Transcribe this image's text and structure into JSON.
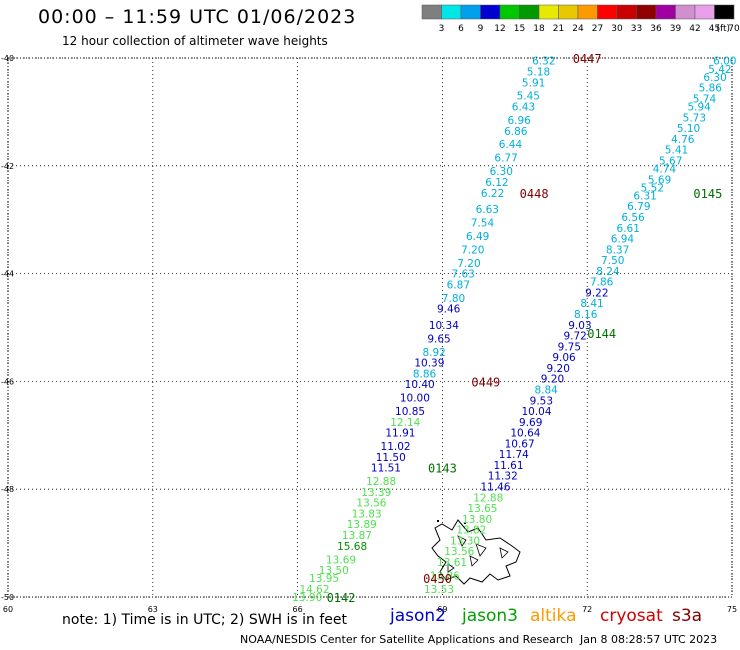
{
  "header": {
    "title": "00:00 – 11:59 UTC 01/06/2023",
    "subtitle": "12 hour collection of altimeter wave heights"
  },
  "scale": {
    "unit": "(ft)",
    "colors": [
      "#7f7f7f",
      "#00e5e5",
      "#00a0ee",
      "#0000d0",
      "#00c800",
      "#009900",
      "#e8e800",
      "#e8c800",
      "#ff9900",
      "#ff0000",
      "#c80000",
      "#900000",
      "#a000a0",
      "#d090d0",
      "#e8a0e8",
      "#000000"
    ],
    "labels": [
      "3",
      "6",
      "9",
      "12",
      "15",
      "18",
      "21",
      "24",
      "27",
      "30",
      "33",
      "36",
      "39",
      "42",
      "45",
      "70"
    ]
  },
  "axes": {
    "x_ticks": [
      "60",
      "63",
      "66",
      "69",
      "72",
      "75"
    ],
    "y_ticks": [
      "-40",
      "-42",
      "-44",
      "-46",
      "-48",
      "-50"
    ]
  },
  "tracks": [
    {
      "time": "0447",
      "color": "#800000",
      "x": 72,
      "y": -40
    },
    {
      "time": "0448",
      "color": "#800000",
      "x": 70.9,
      "y": -42.5
    },
    {
      "time": "0145",
      "color": "#007000",
      "x": 74.5,
      "y": -42.5
    },
    {
      "time": "0144",
      "color": "#007000",
      "x": 72.3,
      "y": -45.1
    },
    {
      "time": "0143",
      "color": "#007000",
      "x": 69,
      "y": -47.6
    },
    {
      "time": "0142",
      "color": "#007000",
      "x": 66.9,
      "y": -50
    },
    {
      "time": "0450",
      "color": "#800000",
      "x": 68.9,
      "y": -49.65
    },
    {
      "time": "0449",
      "color": "#800000",
      "x": 69.9,
      "y": -46
    }
  ],
  "swh_readings": [
    {
      "x": 71.1,
      "y": -40.05,
      "v": "6.32",
      "c": "#00b0d8"
    },
    {
      "x": 70.99,
      "y": -40.25,
      "v": "5.18",
      "c": "#00b0d8"
    },
    {
      "x": 70.89,
      "y": -40.45,
      "v": "5.91",
      "c": "#00b0d8"
    },
    {
      "x": 70.78,
      "y": -40.7,
      "v": "5.45",
      "c": "#00b0d8"
    },
    {
      "x": 70.68,
      "y": -40.9,
      "v": "6.43",
      "c": "#00b0d8"
    },
    {
      "x": 70.59,
      "y": -41.15,
      "v": "6.96",
      "c": "#00b0d8"
    },
    {
      "x": 70.52,
      "y": -41.35,
      "v": "6.86",
      "c": "#00b0d8"
    },
    {
      "x": 70.41,
      "y": -41.6,
      "v": "6.44",
      "c": "#00b0d8"
    },
    {
      "x": 70.32,
      "y": -41.85,
      "v": "6.77",
      "c": "#00b0d8"
    },
    {
      "x": 70.22,
      "y": -42.1,
      "v": "6.30",
      "c": "#00b0d8"
    },
    {
      "x": 70.13,
      "y": -42.3,
      "v": "6.12",
      "c": "#00b0d8"
    },
    {
      "x": 70.04,
      "y": -42.5,
      "v": "6.22",
      "c": "#00b0d8"
    },
    {
      "x": 69.93,
      "y": -42.8,
      "v": "6.63",
      "c": "#00b0d8"
    },
    {
      "x": 69.83,
      "y": -43.05,
      "v": "7.54",
      "c": "#00b0d8"
    },
    {
      "x": 69.73,
      "y": -43.3,
      "v": "6.49",
      "c": "#00b0d8"
    },
    {
      "x": 69.63,
      "y": -43.55,
      "v": "7.20",
      "c": "#00b0d8"
    },
    {
      "x": 69.55,
      "y": -43.8,
      "v": "7.20",
      "c": "#00b0d8"
    },
    {
      "x": 69.43,
      "y": -44.0,
      "v": "7.63",
      "c": "#00b0d8"
    },
    {
      "x": 69.33,
      "y": -44.2,
      "v": "6.87",
      "c": "#00b0d8"
    },
    {
      "x": 69.23,
      "y": -44.45,
      "v": "7.80",
      "c": "#00b0d8"
    },
    {
      "x": 69.13,
      "y": -44.65,
      "v": "9.46",
      "c": "#0000c0"
    },
    {
      "x": 69.03,
      "y": -44.95,
      "v": "10.34",
      "c": "#0000c0"
    },
    {
      "x": 68.93,
      "y": -45.2,
      "v": "9.65",
      "c": "#0000c0"
    },
    {
      "x": 68.83,
      "y": -45.45,
      "v": "8.92",
      "c": "#00b0d8"
    },
    {
      "x": 68.73,
      "y": -45.65,
      "v": "10.39",
      "c": "#0000c0"
    },
    {
      "x": 68.63,
      "y": -45.85,
      "v": "8.86",
      "c": "#00b0d8"
    },
    {
      "x": 68.53,
      "y": -46.05,
      "v": "10.40",
      "c": "#0000c0"
    },
    {
      "x": 68.43,
      "y": -46.3,
      "v": "10.00",
      "c": "#0000c0"
    },
    {
      "x": 68.33,
      "y": -46.55,
      "v": "10.85",
      "c": "#0000c0"
    },
    {
      "x": 68.23,
      "y": -46.75,
      "v": "12.14",
      "c": "#50e050"
    },
    {
      "x": 68.13,
      "y": -46.95,
      "v": "11.91",
      "c": "#0000c0"
    },
    {
      "x": 68.03,
      "y": -47.2,
      "v": "11.02",
      "c": "#0000c0"
    },
    {
      "x": 67.93,
      "y": -47.4,
      "v": "11.50",
      "c": "#0000c0"
    },
    {
      "x": 67.83,
      "y": -47.6,
      "v": "11.51",
      "c": "#0000c0"
    },
    {
      "x": 67.73,
      "y": -47.85,
      "v": "12.88",
      "c": "#50e050"
    },
    {
      "x": 67.63,
      "y": -48.05,
      "v": "13.39",
      "c": "#50e050"
    },
    {
      "x": 67.53,
      "y": -48.25,
      "v": "13.56",
      "c": "#50e050"
    },
    {
      "x": 67.43,
      "y": -48.45,
      "v": "13.83",
      "c": "#50e050"
    },
    {
      "x": 67.33,
      "y": -48.65,
      "v": "13.89",
      "c": "#50e050"
    },
    {
      "x": 67.23,
      "y": -48.85,
      "v": "13.87",
      "c": "#50e050"
    },
    {
      "x": 67.13,
      "y": -49.05,
      "v": "15.68",
      "c": "#009000"
    },
    {
      "x": 66.9,
      "y": -49.3,
      "v": "13.69",
      "c": "#50e050"
    },
    {
      "x": 66.75,
      "y": -49.5,
      "v": "13.50",
      "c": "#50e050"
    },
    {
      "x": 66.55,
      "y": -49.65,
      "v": "13.95",
      "c": "#50e050"
    },
    {
      "x": 66.35,
      "y": -49.85,
      "v": "14.62",
      "c": "#50e050"
    },
    {
      "x": 66.2,
      "y": -50.0,
      "v": "13.90",
      "c": "#50e050"
    },
    {
      "x": 74.85,
      "y": -40.05,
      "v": "6.00",
      "c": "#00b0d8"
    },
    {
      "x": 74.75,
      "y": -40.2,
      "v": "5.42",
      "c": "#00b0d8"
    },
    {
      "x": 74.65,
      "y": -40.35,
      "v": "6.30",
      "c": "#00b0d8"
    },
    {
      "x": 74.55,
      "y": -40.55,
      "v": "5.86",
      "c": "#00b0d8"
    },
    {
      "x": 74.43,
      "y": -40.75,
      "v": "5.74",
      "c": "#00b0d8"
    },
    {
      "x": 74.32,
      "y": -40.9,
      "v": "5.94",
      "c": "#00b0d8"
    },
    {
      "x": 74.22,
      "y": -41.1,
      "v": "5.73",
      "c": "#00b0d8"
    },
    {
      "x": 74.1,
      "y": -41.3,
      "v": "5.10",
      "c": "#00b0d8"
    },
    {
      "x": 73.98,
      "y": -41.5,
      "v": "4.76",
      "c": "#00b0d8"
    },
    {
      "x": 73.85,
      "y": -41.7,
      "v": "5.41",
      "c": "#00b0d8"
    },
    {
      "x": 73.73,
      "y": -41.9,
      "v": "5.67",
      "c": "#00b0d8"
    },
    {
      "x": 73.6,
      "y": -42.05,
      "v": "4.74",
      "c": "#00b0d8"
    },
    {
      "x": 73.5,
      "y": -42.25,
      "v": "5.69",
      "c": "#00b0d8"
    },
    {
      "x": 73.35,
      "y": -42.4,
      "v": "5.52",
      "c": "#00b0d8"
    },
    {
      "x": 73.2,
      "y": -42.55,
      "v": "6.31",
      "c": "#00b0d8"
    },
    {
      "x": 73.07,
      "y": -42.75,
      "v": "6.79",
      "c": "#00b0d8"
    },
    {
      "x": 72.95,
      "y": -42.95,
      "v": "6.56",
      "c": "#00b0d8"
    },
    {
      "x": 72.85,
      "y": -43.15,
      "v": "6.61",
      "c": "#00b0d8"
    },
    {
      "x": 72.73,
      "y": -43.35,
      "v": "6.94",
      "c": "#00b0d8"
    },
    {
      "x": 72.63,
      "y": -43.55,
      "v": "8.37",
      "c": "#00b0d8"
    },
    {
      "x": 72.53,
      "y": -43.75,
      "v": "7.50",
      "c": "#00b0d8"
    },
    {
      "x": 72.43,
      "y": -43.95,
      "v": "8.24",
      "c": "#00b0d8"
    },
    {
      "x": 72.3,
      "y": -44.15,
      "v": "7.86",
      "c": "#00b0d8"
    },
    {
      "x": 72.2,
      "y": -44.35,
      "v": "9.22",
      "c": "#0000c0"
    },
    {
      "x": 72.1,
      "y": -44.55,
      "v": "8.41",
      "c": "#00b0d8"
    },
    {
      "x": 71.97,
      "y": -44.75,
      "v": "8.16",
      "c": "#00b0d8"
    },
    {
      "x": 71.85,
      "y": -44.95,
      "v": "9.03",
      "c": "#0000c0"
    },
    {
      "x": 71.75,
      "y": -45.15,
      "v": "9.72",
      "c": "#0000c0"
    },
    {
      "x": 71.63,
      "y": -45.35,
      "v": "9.75",
      "c": "#0000c0"
    },
    {
      "x": 71.52,
      "y": -45.55,
      "v": "9.06",
      "c": "#0000c0"
    },
    {
      "x": 71.4,
      "y": -45.75,
      "v": "9.20",
      "c": "#0000c0"
    },
    {
      "x": 71.28,
      "y": -45.95,
      "v": "9.20",
      "c": "#0000c0"
    },
    {
      "x": 71.15,
      "y": -46.15,
      "v": "8.84",
      "c": "#00b0d8"
    },
    {
      "x": 71.05,
      "y": -46.35,
      "v": "9.53",
      "c": "#0000c0"
    },
    {
      "x": 70.95,
      "y": -46.55,
      "v": "10.04",
      "c": "#0000c0"
    },
    {
      "x": 70.83,
      "y": -46.75,
      "v": "9.69",
      "c": "#0000c0"
    },
    {
      "x": 70.72,
      "y": -46.95,
      "v": "10.64",
      "c": "#0000c0"
    },
    {
      "x": 70.6,
      "y": -47.15,
      "v": "10.67",
      "c": "#0000c0"
    },
    {
      "x": 70.48,
      "y": -47.35,
      "v": "11.74",
      "c": "#0000c0"
    },
    {
      "x": 70.37,
      "y": -47.55,
      "v": "11.61",
      "c": "#0000c0"
    },
    {
      "x": 70.25,
      "y": -47.75,
      "v": "11.32",
      "c": "#0000c0"
    },
    {
      "x": 70.1,
      "y": -47.95,
      "v": "11.46",
      "c": "#0000c0"
    },
    {
      "x": 69.95,
      "y": -48.15,
      "v": "12.88",
      "c": "#50e050"
    },
    {
      "x": 69.83,
      "y": -48.35,
      "v": "13.65",
      "c": "#50e050"
    },
    {
      "x": 69.72,
      "y": -48.55,
      "v": "13.80",
      "c": "#50e050"
    },
    {
      "x": 69.6,
      "y": -48.75,
      "v": "13.82",
      "c": "#50e050"
    },
    {
      "x": 69.47,
      "y": -48.95,
      "v": "13.30",
      "c": "#50e050"
    },
    {
      "x": 69.35,
      "y": -49.15,
      "v": "13.56",
      "c": "#50e050"
    },
    {
      "x": 69.2,
      "y": -49.35,
      "v": "13.61",
      "c": "#50e050"
    },
    {
      "x": 69.05,
      "y": -49.6,
      "v": "13.86",
      "c": "#50e050"
    },
    {
      "x": 68.93,
      "y": -49.85,
      "v": "13.53",
      "c": "#50e050"
    }
  ],
  "note": "note: 1) Time is in UTC; 2) SWH is in feet",
  "satellites": [
    {
      "name": "jason2",
      "color": "#0000d0"
    },
    {
      "name": "jason3",
      "color": "#00a000"
    },
    {
      "name": "altika",
      "color": "#ff9900"
    },
    {
      "name": "cryosat",
      "color": "#d00000"
    },
    {
      "name": "s3a",
      "color": "#800000"
    }
  ],
  "footer": {
    "credit": "NOAA/NESDIS Center for Satellite Applications and Research",
    "timestamp": "Jan  8 08:28:57 UTC 2023"
  }
}
